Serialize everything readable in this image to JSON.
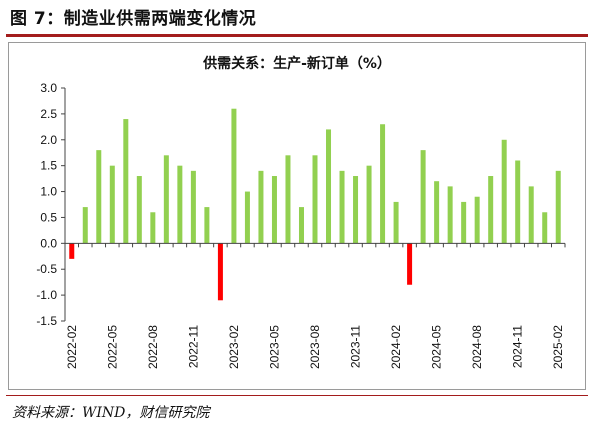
{
  "figure": {
    "title": "图 7：制造业供需两端变化情况",
    "source": "资料来源：WIND，财信研究院"
  },
  "colors": {
    "positive": "#92d050",
    "negative": "#ff0000",
    "rule": "#a31c1c"
  },
  "chart_data": {
    "type": "bar",
    "title": "供需关系：生产-新订单（%）",
    "xlabel": "",
    "ylabel": "",
    "ylim": [
      -1.5,
      3.0
    ],
    "ytick_step": 0.5,
    "grid": false,
    "x_tick_labels": [
      "2022-02",
      "2022-05",
      "2022-08",
      "2022-11",
      "2023-02",
      "2023-05",
      "2023-08",
      "2023-11",
      "2024-02",
      "2024-05",
      "2024-08",
      "2024-11",
      "2025-02"
    ],
    "categories": [
      "2022-02",
      "2022-03",
      "2022-04",
      "2022-05",
      "2022-06",
      "2022-07",
      "2022-08",
      "2022-09",
      "2022-10",
      "2022-11",
      "2022-12",
      "2023-01",
      "2023-02",
      "2023-03",
      "2023-04",
      "2023-05",
      "2023-06",
      "2023-07",
      "2023-08",
      "2023-09",
      "2023-10",
      "2023-11",
      "2023-12",
      "2024-01",
      "2024-02",
      "2024-03",
      "2024-04",
      "2024-05",
      "2024-06",
      "2024-07",
      "2024-08",
      "2024-09",
      "2024-10",
      "2024-11",
      "2024-12",
      "2025-01",
      "2025-02"
    ],
    "values": [
      -0.3,
      0.7,
      1.8,
      1.5,
      2.4,
      1.3,
      0.6,
      1.7,
      1.5,
      1.4,
      0.7,
      -1.1,
      2.6,
      1.0,
      1.4,
      1.3,
      1.7,
      0.7,
      1.7,
      2.2,
      1.4,
      1.3,
      1.5,
      2.3,
      0.8,
      -0.8,
      1.8,
      1.2,
      1.1,
      0.8,
      0.9,
      1.3,
      2.0,
      1.6,
      1.1,
      0.6,
      1.4
    ]
  }
}
